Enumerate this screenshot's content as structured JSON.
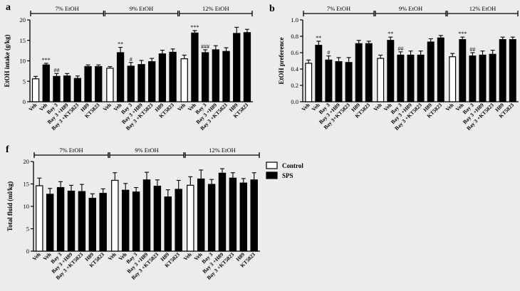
{
  "colors": {
    "background": "#ececec",
    "control": "#ffffff",
    "sps": "#000000",
    "ink": "#000000"
  },
  "legend": {
    "control_label": "Control",
    "sps_label": "SPS"
  },
  "chart_data": [
    {
      "id": "a",
      "panel_label": "a",
      "type": "bar",
      "ylabel": "EtOH intake (g/kg)",
      "ylim": [
        0,
        20
      ],
      "yticks": [
        0,
        5,
        10,
        15,
        20
      ],
      "groups": [
        {
          "label": "7% EtOH",
          "categories": [
            "Veh",
            "Veh",
            "Bay 3",
            "Bay 3 +H89",
            "Bay 3 +KT5823",
            "H89",
            "KT5823"
          ],
          "condition": [
            "Control",
            "SPS",
            "SPS",
            "SPS",
            "SPS",
            "SPS",
            "SPS"
          ],
          "values": [
            5.6,
            9.0,
            6.2,
            6.3,
            5.7,
            8.6,
            8.6
          ],
          "errors": [
            0.6,
            0.4,
            0.7,
            0.6,
            0.6,
            0.4,
            0.4
          ],
          "annotations": [
            "",
            "***",
            "##",
            "",
            "",
            "",
            ""
          ]
        },
        {
          "label": "9% EtOH",
          "categories": [
            "Veh",
            "Veh",
            "Bay 3",
            "Bay 3 +H89",
            "Bay 3 +KT5823",
            "H89",
            "KT5823"
          ],
          "condition": [
            "Control",
            "SPS",
            "SPS",
            "SPS",
            "SPS",
            "SPS",
            "SPS"
          ],
          "values": [
            8.2,
            12.0,
            8.7,
            9.1,
            9.8,
            11.7,
            12.1
          ],
          "errors": [
            0.4,
            1.3,
            0.9,
            1.0,
            0.8,
            0.9,
            0.8
          ],
          "annotations": [
            "",
            "**",
            "#",
            "",
            "",
            "",
            ""
          ]
        },
        {
          "label": "12% EtOH",
          "categories": [
            "Veh",
            "Veh",
            "Bay 3",
            "Bay 3 +H89",
            "Bay 3 +KT5823",
            "H89",
            "KT5823"
          ],
          "condition": [
            "Control",
            "SPS",
            "SPS",
            "SPS",
            "SPS",
            "SPS",
            "SPS"
          ],
          "values": [
            10.5,
            16.8,
            12.0,
            12.7,
            12.3,
            16.7,
            16.9
          ],
          "errors": [
            0.9,
            0.6,
            0.7,
            1.0,
            0.9,
            1.5,
            0.8
          ],
          "annotations": [
            "",
            "***",
            "###",
            "",
            "",
            "",
            ""
          ]
        }
      ]
    },
    {
      "id": "b",
      "panel_label": "b",
      "type": "bar",
      "ylabel": "EtOH preference",
      "ylim": [
        0,
        1.0
      ],
      "yticks": [
        0.0,
        0.2,
        0.4,
        0.6,
        0.8,
        1.0
      ],
      "groups": [
        {
          "label": "7% EtOH",
          "categories": [
            "Veh",
            "Veh",
            "Bay 3",
            "Bay 3 +H89",
            "Bay 3+KT5823",
            "H89",
            "KT5823"
          ],
          "condition": [
            "Control",
            "SPS",
            "SPS",
            "SPS",
            "SPS",
            "SPS",
            "SPS"
          ],
          "values": [
            0.47,
            0.69,
            0.51,
            0.49,
            0.48,
            0.71,
            0.71
          ],
          "errors": [
            0.04,
            0.05,
            0.05,
            0.05,
            0.06,
            0.04,
            0.03
          ],
          "annotations": [
            "",
            "**",
            "#",
            "",
            "",
            "",
            ""
          ]
        },
        {
          "label": "9% EtOH",
          "categories": [
            "Veh",
            "Veh",
            "Bay 3",
            "Bay 3 +H89",
            "Bay 3 +KT5823",
            "H89",
            "KT5823"
          ],
          "condition": [
            "Control",
            "SPS",
            "SPS",
            "SPS",
            "SPS",
            "SPS",
            "SPS"
          ],
          "values": [
            0.53,
            0.75,
            0.57,
            0.57,
            0.57,
            0.73,
            0.78
          ],
          "errors": [
            0.04,
            0.04,
            0.04,
            0.05,
            0.05,
            0.04,
            0.03
          ],
          "annotations": [
            "",
            "**",
            "##",
            "",
            "",
            "",
            ""
          ]
        },
        {
          "label": "12% EtOH",
          "categories": [
            "Veh",
            "Veh",
            "Bay 3",
            "Bay 3 +H89",
            "Bay 3 +KT5823",
            "H89",
            "KT5823"
          ],
          "condition": [
            "Control",
            "SPS",
            "SPS",
            "SPS",
            "SPS",
            "SPS",
            "SPS"
          ],
          "values": [
            0.55,
            0.76,
            0.56,
            0.57,
            0.58,
            0.76,
            0.76
          ],
          "errors": [
            0.04,
            0.03,
            0.04,
            0.05,
            0.05,
            0.03,
            0.03
          ],
          "annotations": [
            "",
            "***",
            "##",
            "",
            "",
            "",
            ""
          ]
        }
      ]
    },
    {
      "id": "f",
      "panel_label": "f",
      "type": "bar",
      "ylabel": "Total fluid (ml/kg)",
      "ylim": [
        0,
        20
      ],
      "yticks": [
        0,
        5,
        10,
        15,
        20
      ],
      "groups": [
        {
          "label": "7% EtOH",
          "categories": [
            "Veh",
            "Veh",
            "Bay 3",
            "Bay 3 +H89",
            "Bay 3 +KT5823",
            "H89",
            "KT5823"
          ],
          "condition": [
            "Control",
            "SPS",
            "SPS",
            "SPS",
            "SPS",
            "SPS",
            "SPS"
          ],
          "values": [
            14.6,
            12.7,
            14.2,
            13.4,
            13.3,
            11.8,
            12.9
          ],
          "errors": [
            1.7,
            1.3,
            1.3,
            1.3,
            1.6,
            1.0,
            1.0
          ],
          "annotations": [
            "",
            "",
            "",
            "",
            "",
            "",
            ""
          ]
        },
        {
          "label": "9% EtOH",
          "categories": [
            "Veh",
            "Veh",
            "Bay 3",
            "Bay 3 +H89",
            "Bay 3 +KT5823",
            "H89",
            "KT5823"
          ],
          "condition": [
            "Control",
            "SPS",
            "SPS",
            "SPS",
            "SPS",
            "SPS",
            "SPS"
          ],
          "values": [
            15.8,
            13.6,
            13.2,
            15.9,
            14.5,
            12.1,
            13.8
          ],
          "errors": [
            1.7,
            1.5,
            1.0,
            1.7,
            1.4,
            1.6,
            2.0
          ],
          "annotations": [
            "",
            "",
            "",
            "",
            "",
            "",
            ""
          ]
        },
        {
          "label": "12% EtOH",
          "categories": [
            "Veh",
            "Veh",
            "Bay 3",
            "Bay 3 +H89",
            "Bay 3 +KT5823",
            "H89",
            "KT5823"
          ],
          "condition": [
            "Control",
            "SPS",
            "SPS",
            "SPS",
            "SPS",
            "SPS",
            "SPS"
          ],
          "values": [
            14.7,
            16.1,
            14.9,
            17.4,
            16.3,
            15.2,
            15.9
          ],
          "errors": [
            1.9,
            2.0,
            1.1,
            1.0,
            1.2,
            1.0,
            1.6
          ],
          "annotations": [
            "",
            "",
            "",
            "",
            "",
            "",
            ""
          ]
        }
      ]
    }
  ]
}
